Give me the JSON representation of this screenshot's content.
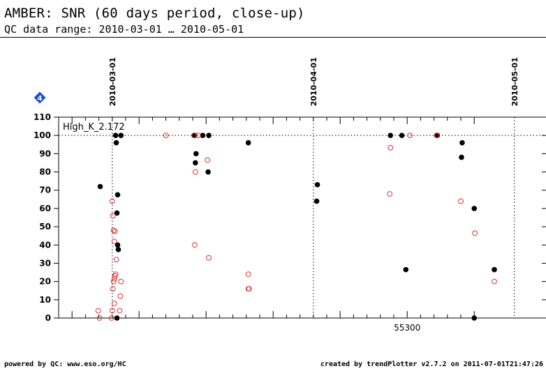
{
  "header": {
    "title": "AMBER: SNR (60 days period, close-up)",
    "subtitle": "QC data range: 2010-03-01 … 2010-05-01"
  },
  "footer": {
    "left": "powered by QC: www.eso.org/HC",
    "right": "created by trendPlotter v2.7.2 on 2011-07-01T21:47:26"
  },
  "badge": {
    "label": "4",
    "color": "#1a4fd6",
    "icon": "diamond-badge-icon"
  },
  "chart_data": {
    "type": "scatter",
    "panel_label": "High_K_2.172",
    "xlabel": "",
    "ylabel": "",
    "xlim": [
      55248,
      55311
    ],
    "ylim": [
      0,
      110
    ],
    "y_ticks": [
      0,
      10,
      20,
      30,
      40,
      50,
      60,
      70,
      80,
      90,
      100,
      110
    ],
    "x_ticks": [
      55300
    ],
    "date_markers": [
      {
        "x": 55256,
        "label": "2010-03-01"
      },
      {
        "x": 55286,
        "label": "2010-04-01"
      },
      {
        "x": 55316,
        "label": "2010-05-01"
      }
    ],
    "reference_line_y": 100,
    "grid": false,
    "colors": {
      "filled": "#000000",
      "open": "#e03030"
    },
    "series": [
      {
        "marker": "filled",
        "points": [
          [
            55254.2,
            72
          ],
          [
            55256.5,
            100
          ],
          [
            55256.6,
            96
          ],
          [
            55256.8,
            67.5
          ],
          [
            55256.7,
            57.5
          ],
          [
            55256.8,
            40
          ],
          [
            55256.9,
            37.5
          ],
          [
            55256.7,
            0
          ],
          [
            55257.3,
            100
          ],
          [
            55268.3,
            100
          ],
          [
            55268.5,
            90
          ],
          [
            55268.4,
            85
          ],
          [
            55269.5,
            100
          ],
          [
            55270.4,
            100
          ],
          [
            55270.3,
            80
          ],
          [
            55276.3,
            96
          ],
          [
            55286.6,
            73
          ],
          [
            55286.5,
            64
          ],
          [
            55297.5,
            100
          ],
          [
            55299.2,
            100
          ],
          [
            55299.8,
            26.5
          ],
          [
            55304.5,
            100
          ],
          [
            55308.2,
            96
          ],
          [
            55308.1,
            88
          ],
          [
            55310.0,
            60
          ],
          [
            55310.0,
            0
          ],
          [
            55313.0,
            26.5
          ]
        ]
      },
      {
        "marker": "open",
        "points": [
          [
            55253.9,
            4
          ],
          [
            55254.1,
            0
          ],
          [
            55256.0,
            64
          ],
          [
            55256.1,
            56
          ],
          [
            55256.2,
            48
          ],
          [
            55256.4,
            47.5
          ],
          [
            55256.3,
            42
          ],
          [
            55256.6,
            32
          ],
          [
            55256.5,
            24
          ],
          [
            55256.4,
            23
          ],
          [
            55256.3,
            21.5
          ],
          [
            55256.2,
            20
          ],
          [
            55256.1,
            16
          ],
          [
            55256.3,
            8
          ],
          [
            55256.0,
            4
          ],
          [
            55255.9,
            0
          ],
          [
            55257.3,
            20
          ],
          [
            55257.2,
            12
          ],
          [
            55257.1,
            4
          ],
          [
            55264.0,
            100
          ],
          [
            55268.2,
            100
          ],
          [
            55268.4,
            80
          ],
          [
            55268.3,
            40
          ],
          [
            55268.8,
            100
          ],
          [
            55270.2,
            86.5
          ],
          [
            55270.4,
            33
          ],
          [
            55276.3,
            24
          ],
          [
            55276.4,
            16
          ],
          [
            55276.3,
            16
          ],
          [
            55297.5,
            93.3
          ],
          [
            55297.4,
            68
          ],
          [
            55300.4,
            100
          ],
          [
            55304.4,
            100
          ],
          [
            55308.0,
            64
          ],
          [
            55310.1,
            46.5
          ],
          [
            55313.0,
            20
          ]
        ]
      }
    ]
  }
}
